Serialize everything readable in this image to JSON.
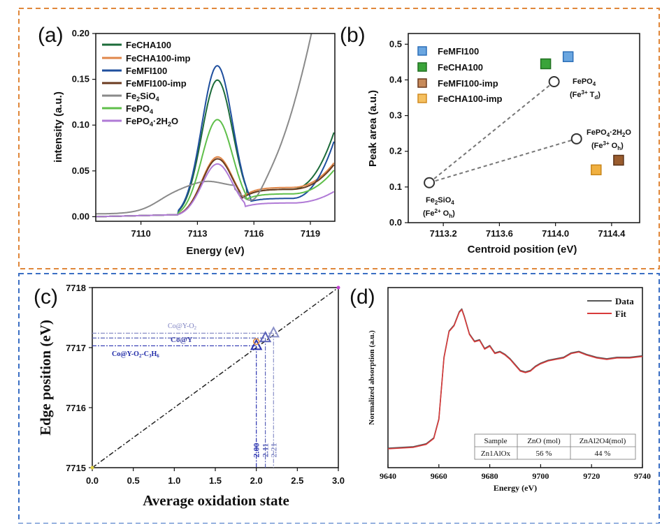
{
  "panel_labels": [
    "(a)",
    "(b)",
    "(c)",
    "(d)"
  ],
  "colors": {
    "orange_frame": "#e0873a",
    "blue_frame": "#3b6fc4"
  },
  "chart_data": [
    {
      "panel": "a",
      "type": "line",
      "xlabel": "Energy (eV)",
      "ylabel": "intensity (a.u.)",
      "xlim": [
        7107.6,
        7120.3
      ],
      "ylim": [
        -0.005,
        0.2
      ],
      "xticks": [
        7110,
        7113,
        7116,
        7119
      ],
      "yticks": [
        0.0,
        0.05,
        0.1,
        0.15,
        0.2
      ],
      "ytick_labels": [
        "0.00",
        "0.05",
        "0.10",
        "0.15",
        "0.20"
      ],
      "legend_placement": "top-left",
      "series": [
        {
          "name": "FeCHA100",
          "color": "#1c6b3a",
          "peak": 0.148,
          "baseline": 0.03,
          "tail": 0.095,
          "post": 0.02
        },
        {
          "name": "FeCHA100-imp",
          "color": "#e0874a",
          "peak": 0.064,
          "baseline": 0.032,
          "tail": 0.06,
          "post": 0.03
        },
        {
          "name": "FeMFI100",
          "color": "#1f4f9e",
          "peak": 0.164,
          "baseline": 0.02,
          "tail": 0.085,
          "post": 0.015
        },
        {
          "name": "FeMFI100-imp",
          "color": "#6b3b1f",
          "peak": 0.062,
          "baseline": 0.03,
          "tail": 0.058,
          "post": 0.03
        },
        {
          "name": "Fe2SiO4",
          "color": "#8a8a8a",
          "peak": 0.038,
          "baseline": 0.03,
          "tail": 0.2,
          "post": 0.02
        },
        {
          "name": "FePO4",
          "color": "#5fbf4a",
          "peak": 0.105,
          "baseline": 0.025,
          "tail": 0.052,
          "post": 0.02
        },
        {
          "name": "FePO4·2H2O",
          "color": "#b07ad6",
          "peak": 0.057,
          "baseline": 0.015,
          "tail": 0.028,
          "post": 0.01
        }
      ]
    },
    {
      "panel": "b",
      "type": "scatter",
      "xlabel": "Centroid position (eV)",
      "ylabel": "Peak area (a.u.)",
      "xlim": [
        7112.95,
        7114.6
      ],
      "ylim": [
        0.0,
        0.53
      ],
      "xticks": [
        7113.2,
        7113.6,
        7114.0,
        7114.4
      ],
      "xtick_labels": [
        "7113.2",
        "7113.6",
        "7114.0",
        "7114.4"
      ],
      "yticks": [
        0.0,
        0.1,
        0.2,
        0.3,
        0.4,
        0.5
      ],
      "ytick_labels": [
        "0.0",
        "0.1",
        "0.2",
        "0.3",
        "0.4",
        "0.5"
      ],
      "legend_placement": "top-left",
      "series": [
        {
          "name": "FeMFI100",
          "color": "#6aa6e0",
          "x": 7114.09,
          "y": 0.465
        },
        {
          "name": "FeCHA100",
          "color": "#3aa43a",
          "x": 7113.93,
          "y": 0.445
        },
        {
          "name": "FeMFI100-imp",
          "color": "#9a5c2e",
          "x": 7114.45,
          "y": 0.175
        },
        {
          "name": "FeCHA100-imp",
          "color": "#f0b040",
          "x": 7114.29,
          "y": 0.148
        }
      ],
      "references": [
        {
          "name": "FePO4",
          "x": 7113.99,
          "y": 0.395,
          "label": "FePO4",
          "sublabel": "(Fe3+ Td)"
        },
        {
          "name": "FePO4·2H2O",
          "x": 7114.15,
          "y": 0.235,
          "label": "FePO4·2H2O",
          "sublabel": "(Fe3+ Oh)"
        },
        {
          "name": "Fe2SiO4",
          "x": 7113.1,
          "y": 0.112,
          "label": "Fe2SiO4",
          "sublabel": "(Fe2+ Oh)"
        }
      ]
    },
    {
      "panel": "c",
      "type": "line",
      "xlabel": "Average oxidation state",
      "ylabel": "Edge position (eV)",
      "xlim": [
        0.0,
        3.0
      ],
      "ylim": [
        7715,
        7718
      ],
      "xticks": [
        0.0,
        0.5,
        1.0,
        1.5,
        2.0,
        2.5,
        3.0
      ],
      "xtick_labels": [
        "0.0",
        "0.5",
        "1.0",
        "1.5",
        "2.0",
        "2.5",
        "3.0"
      ],
      "yticks": [
        7715,
        7716,
        7717,
        7718
      ],
      "ytick_labels": [
        "7715",
        "7716",
        "7717",
        "7718"
      ],
      "reference_line": {
        "x": [
          0.0,
          3.0
        ],
        "y": [
          7715.0,
          7718.0
        ]
      },
      "points": [
        {
          "name": "Co@Y-O2",
          "x": 2.21,
          "y": 7717.24,
          "label": "2.21",
          "color": "#8a90c8"
        },
        {
          "name": "Co@Y",
          "x": 2.11,
          "y": 7717.16,
          "label": "2.11",
          "color": "#5a62b8"
        },
        {
          "name": "Co@Y-O2-C3H6",
          "x": 2.0,
          "y": 7717.03,
          "label": "2.00",
          "color": "#2a33b0"
        }
      ],
      "labels": {
        "co_y_o2": "Co@Y-O",
        "co_y_o2_sub": "2",
        "co_y": "Co@Y",
        "co_y_o2_c3h6": "Co@Y-O",
        "co_y_o2_c3h6_sub1": "2",
        "co_y_o2_c3h6_mid": "-C",
        "co_y_o2_c3h6_sub2": "3",
        "co_y_o2_c3h6_h": "H",
        "co_y_o2_c3h6_sub3": "6"
      }
    },
    {
      "panel": "d",
      "type": "line",
      "xlabel": "Energy (eV)",
      "ylabel": "Normalized absorption (a.u.)",
      "xlim": [
        9640,
        9740
      ],
      "xticks": [
        9640,
        9660,
        9680,
        9700,
        9720,
        9740
      ],
      "xtick_labels": [
        "9640",
        "9660",
        "9680",
        "9700",
        "9720",
        "9740"
      ],
      "legend_placement": "top-right",
      "series": [
        {
          "name": "Data",
          "color": "#555555"
        },
        {
          "name": "Fit",
          "color": "#d83a3a"
        }
      ],
      "spectrum": {
        "x": [
          9640,
          9650,
          9655,
          9658,
          9660,
          9662,
          9664,
          9666,
          9668,
          9669,
          9670,
          9672,
          9674,
          9676,
          9678,
          9680,
          9682,
          9684,
          9686,
          9688,
          9690,
          9692,
          9694,
          9696,
          9698,
          9700,
          9703,
          9706,
          9709,
          9712,
          9715,
          9718,
          9722,
          9726,
          9730,
          9735,
          9740
        ],
        "y": [
          0.0,
          0.01,
          0.03,
          0.07,
          0.2,
          0.62,
          0.8,
          0.84,
          0.93,
          0.95,
          0.9,
          0.78,
          0.73,
          0.74,
          0.68,
          0.7,
          0.65,
          0.66,
          0.64,
          0.61,
          0.57,
          0.53,
          0.52,
          0.53,
          0.56,
          0.58,
          0.6,
          0.61,
          0.62,
          0.65,
          0.66,
          0.64,
          0.62,
          0.61,
          0.62,
          0.62,
          0.63
        ]
      },
      "table": {
        "headers": [
          "Sample",
          "ZnO (mol)",
          "ZnAl2O4(mol)"
        ],
        "rows": [
          [
            "Zn1AlOx",
            "56 %",
            "44 %"
          ]
        ]
      }
    }
  ]
}
